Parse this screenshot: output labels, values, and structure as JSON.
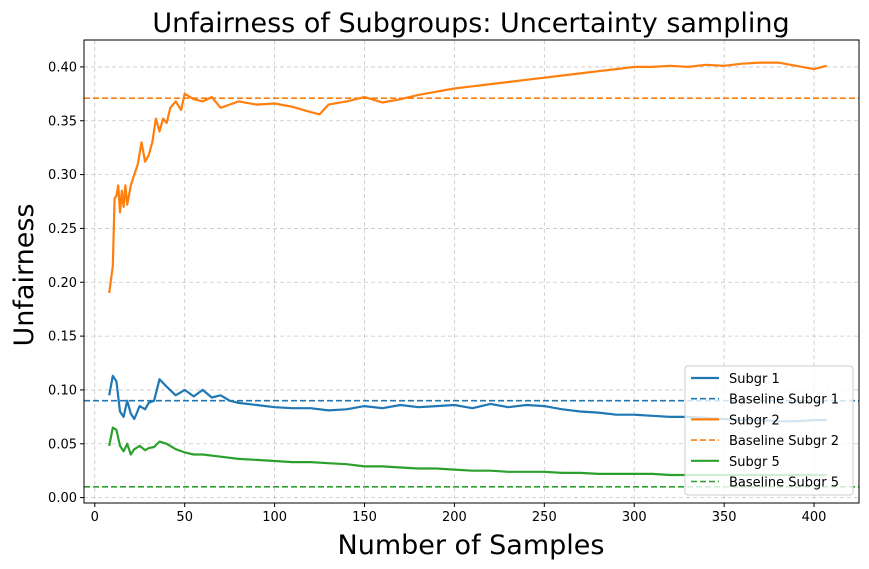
{
  "chart_data": {
    "type": "line",
    "title": "Unfairness of Subgroups: Uncertainty sampling",
    "xlabel": "Number of Samples",
    "ylabel": "Unfairness",
    "xlim": [
      -6,
      425
    ],
    "ylim": [
      -0.005,
      0.425
    ],
    "xticks": [
      0,
      50,
      100,
      150,
      200,
      250,
      300,
      350,
      400
    ],
    "yticks": [
      0.0,
      0.05,
      0.1,
      0.15,
      0.2,
      0.25,
      0.3,
      0.35,
      0.4
    ],
    "xtick_labels": [
      "0",
      "50",
      "100",
      "150",
      "200",
      "250",
      "300",
      "350",
      "400"
    ],
    "ytick_labels": [
      "0.00",
      "0.05",
      "0.10",
      "0.15",
      "0.20",
      "0.25",
      "0.30",
      "0.35",
      "0.40"
    ],
    "grid": true,
    "legend_position": "lower-right",
    "series": [
      {
        "name": "Subgr 1",
        "color": "#1f77b4",
        "style": "solid",
        "x": [
          8,
          10,
          12,
          14,
          16,
          18,
          20,
          22,
          25,
          28,
          30,
          33,
          36,
          40,
          45,
          50,
          55,
          60,
          65,
          70,
          75,
          80,
          90,
          100,
          110,
          120,
          130,
          140,
          150,
          160,
          170,
          180,
          190,
          200,
          210,
          220,
          230,
          240,
          250,
          260,
          270,
          280,
          290,
          300,
          310,
          320,
          330,
          340,
          350,
          360,
          370,
          380,
          390,
          400,
          407
        ],
        "values": [
          0.095,
          0.113,
          0.108,
          0.08,
          0.075,
          0.09,
          0.078,
          0.073,
          0.085,
          0.082,
          0.088,
          0.09,
          0.11,
          0.103,
          0.095,
          0.1,
          0.094,
          0.1,
          0.093,
          0.095,
          0.09,
          0.088,
          0.086,
          0.084,
          0.083,
          0.083,
          0.081,
          0.082,
          0.085,
          0.083,
          0.086,
          0.084,
          0.085,
          0.086,
          0.083,
          0.087,
          0.084,
          0.086,
          0.085,
          0.082,
          0.08,
          0.079,
          0.077,
          0.077,
          0.076,
          0.075,
          0.075,
          0.074,
          0.073,
          0.072,
          0.072,
          0.071,
          0.071,
          0.072,
          0.072
        ]
      },
      {
        "name": "Baseline Subgr 1",
        "color": "#1f77b4",
        "style": "dashed",
        "value": 0.09
      },
      {
        "name": "Subgr 2",
        "color": "#ff7f0e",
        "style": "solid",
        "x": [
          8,
          10,
          11,
          12,
          13,
          14,
          15,
          16,
          17,
          18,
          20,
          22,
          24,
          26,
          28,
          30,
          32,
          34,
          36,
          38,
          40,
          42,
          45,
          48,
          50,
          55,
          60,
          65,
          70,
          75,
          80,
          90,
          100,
          110,
          120,
          125,
          130,
          140,
          150,
          160,
          170,
          180,
          190,
          200,
          210,
          220,
          230,
          240,
          250,
          260,
          270,
          280,
          290,
          300,
          310,
          320,
          330,
          340,
          350,
          360,
          370,
          380,
          390,
          400,
          407
        ],
        "values": [
          0.19,
          0.215,
          0.278,
          0.28,
          0.29,
          0.265,
          0.285,
          0.27,
          0.29,
          0.272,
          0.29,
          0.3,
          0.31,
          0.33,
          0.312,
          0.318,
          0.33,
          0.352,
          0.34,
          0.352,
          0.348,
          0.362,
          0.368,
          0.36,
          0.375,
          0.37,
          0.368,
          0.372,
          0.362,
          0.365,
          0.368,
          0.365,
          0.366,
          0.363,
          0.358,
          0.356,
          0.365,
          0.368,
          0.372,
          0.367,
          0.37,
          0.374,
          0.377,
          0.38,
          0.382,
          0.384,
          0.386,
          0.388,
          0.39,
          0.392,
          0.394,
          0.396,
          0.398,
          0.4,
          0.4,
          0.401,
          0.4,
          0.402,
          0.401,
          0.403,
          0.404,
          0.404,
          0.401,
          0.398,
          0.401
        ]
      },
      {
        "name": "Baseline Subgr 2",
        "color": "#ff7f0e",
        "style": "dashed",
        "value": 0.371
      },
      {
        "name": "Subgr 5",
        "color": "#2ca02c",
        "style": "solid",
        "x": [
          8,
          10,
          12,
          14,
          16,
          18,
          20,
          22,
          25,
          28,
          30,
          33,
          36,
          40,
          45,
          50,
          55,
          60,
          70,
          80,
          90,
          100,
          110,
          120,
          130,
          140,
          150,
          160,
          170,
          180,
          190,
          200,
          210,
          220,
          230,
          240,
          250,
          260,
          270,
          280,
          290,
          300,
          310,
          320,
          330,
          340,
          350,
          360,
          370,
          380,
          390,
          400,
          407
        ],
        "values": [
          0.048,
          0.065,
          0.063,
          0.048,
          0.043,
          0.05,
          0.04,
          0.045,
          0.048,
          0.044,
          0.046,
          0.047,
          0.052,
          0.05,
          0.045,
          0.042,
          0.04,
          0.04,
          0.038,
          0.036,
          0.035,
          0.034,
          0.033,
          0.033,
          0.032,
          0.031,
          0.029,
          0.029,
          0.028,
          0.027,
          0.027,
          0.026,
          0.025,
          0.025,
          0.024,
          0.024,
          0.024,
          0.023,
          0.023,
          0.022,
          0.022,
          0.022,
          0.022,
          0.021,
          0.021,
          0.021,
          0.021,
          0.021,
          0.021,
          0.021,
          0.021,
          0.021,
          0.021
        ]
      },
      {
        "name": "Baseline Subgr 5",
        "color": "#2ca02c",
        "style": "dashed",
        "value": 0.01
      }
    ]
  }
}
